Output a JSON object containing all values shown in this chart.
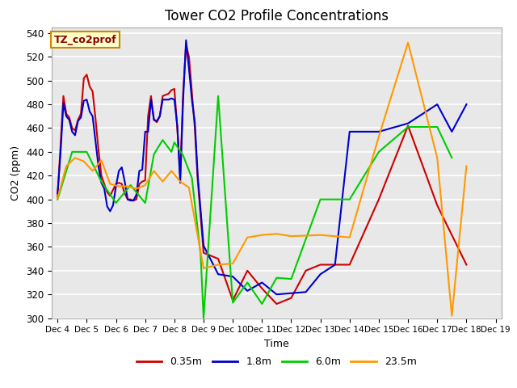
{
  "title": "Tower CO2 Profile Concentrations",
  "xlabel": "Time",
  "ylabel": "CO2 (ppm)",
  "ylim": [
    300,
    545
  ],
  "yticks": [
    300,
    320,
    340,
    360,
    380,
    400,
    420,
    440,
    460,
    480,
    500,
    520,
    540
  ],
  "bg_color": "#e8e8e8",
  "annotation_text": "TZ_co2prof",
  "annotation_color": "#8B0000",
  "annotation_bg": "#ffffcc",
  "annotation_border": "#cc8800",
  "legend_entries": [
    "0.35m",
    "1.8m",
    "6.0m",
    "23.5m"
  ],
  "legend_colors": [
    "#cc0000",
    "#0000cc",
    "#00cc00",
    "#ff9900"
  ],
  "series": {
    "red": {
      "label": "0.35m",
      "color": "#cc0000",
      "x": [
        4.0,
        4.1,
        4.2,
        4.3,
        4.4,
        4.5,
        4.6,
        4.7,
        4.8,
        4.9,
        5.0,
        5.1,
        5.2,
        5.3,
        5.4,
        5.5,
        5.6,
        5.7,
        5.8,
        5.9,
        6.0,
        6.1,
        6.2,
        6.3,
        6.4,
        6.5,
        6.6,
        6.7,
        6.8,
        6.9,
        7.0,
        7.1,
        7.2,
        7.3,
        7.4,
        7.5,
        7.6,
        7.7,
        7.8,
        7.9,
        8.0,
        8.1,
        8.2,
        8.3,
        8.4,
        8.5,
        8.6,
        8.7,
        8.8,
        9.0,
        9.5,
        10.0,
        10.5,
        11.0,
        11.5,
        12.0,
        12.5,
        13.0,
        14.0,
        15.0,
        16.0,
        17.0,
        18.0
      ],
      "y": [
        402,
        444,
        487,
        472,
        469,
        460,
        458,
        467,
        472,
        502,
        505,
        495,
        491,
        468,
        442,
        420,
        413,
        406,
        403,
        408,
        413,
        414,
        413,
        405,
        400,
        400,
        399,
        400,
        413,
        415,
        416,
        470,
        487,
        467,
        465,
        470,
        487,
        488,
        489,
        492,
        493,
        460,
        420,
        490,
        530,
        520,
        490,
        460,
        416,
        355,
        350,
        315,
        340,
        325,
        312,
        317,
        340,
        345,
        345,
        400,
        462,
        395,
        345
      ]
    },
    "blue": {
      "label": "1.8m",
      "color": "#0000cc",
      "x": [
        4.0,
        4.1,
        4.2,
        4.3,
        4.4,
        4.5,
        4.6,
        4.7,
        4.8,
        4.9,
        5.0,
        5.1,
        5.2,
        5.3,
        5.4,
        5.5,
        5.6,
        5.7,
        5.8,
        5.9,
        6.0,
        6.1,
        6.2,
        6.3,
        6.4,
        6.5,
        6.6,
        6.7,
        6.8,
        6.9,
        7.0,
        7.1,
        7.2,
        7.3,
        7.4,
        7.5,
        7.6,
        7.7,
        7.8,
        7.9,
        8.0,
        8.1,
        8.2,
        8.3,
        8.4,
        8.5,
        8.6,
        8.7,
        8.8,
        9.0,
        9.5,
        10.0,
        10.5,
        11.0,
        11.5,
        12.0,
        12.5,
        13.0,
        13.5,
        14.0,
        15.0,
        16.0,
        17.0,
        17.5,
        18.0
      ],
      "y": [
        405,
        438,
        481,
        470,
        467,
        457,
        454,
        466,
        469,
        483,
        484,
        474,
        470,
        449,
        428,
        414,
        409,
        394,
        390,
        395,
        411,
        424,
        427,
        415,
        400,
        399,
        399,
        404,
        424,
        425,
        457,
        457,
        484,
        467,
        466,
        470,
        484,
        484,
        484,
        485,
        484,
        462,
        414,
        484,
        534,
        510,
        484,
        465,
        420,
        361,
        337,
        335,
        323,
        330,
        320,
        321,
        322,
        337,
        345,
        457,
        457,
        464,
        480,
        457,
        480
      ]
    },
    "green": {
      "label": "6.0m",
      "color": "#00cc00",
      "x": [
        4.0,
        4.5,
        5.0,
        5.5,
        6.0,
        6.5,
        7.0,
        7.3,
        7.6,
        7.9,
        8.0,
        8.3,
        8.6,
        8.9,
        9.0,
        9.5,
        10.0,
        10.5,
        11.0,
        11.5,
        12.0,
        13.0,
        14.0,
        15.0,
        16.0,
        17.0,
        17.5
      ],
      "y": [
        400,
        440,
        440,
        415,
        397,
        412,
        397,
        438,
        450,
        440,
        448,
        437,
        418,
        353,
        300,
        487,
        313,
        330,
        312,
        334,
        333,
        400,
        400,
        440,
        461,
        461,
        435
      ]
    },
    "orange": {
      "label": "23.5m",
      "color": "#ff9900",
      "x": [
        4.0,
        4.3,
        4.6,
        4.9,
        5.2,
        5.5,
        5.8,
        6.1,
        6.4,
        6.7,
        7.0,
        7.3,
        7.6,
        7.9,
        8.2,
        8.5,
        9.0,
        9.5,
        10.0,
        10.5,
        11.0,
        11.5,
        12.0,
        13.0,
        14.0,
        15.0,
        16.0,
        17.0,
        17.5,
        18.0
      ],
      "y": [
        401,
        428,
        435,
        432,
        424,
        433,
        413,
        411,
        411,
        409,
        412,
        424,
        415,
        424,
        415,
        410,
        342,
        345,
        346,
        368,
        370,
        371,
        369,
        370,
        368,
        453,
        532,
        435,
        302,
        428
      ]
    }
  }
}
